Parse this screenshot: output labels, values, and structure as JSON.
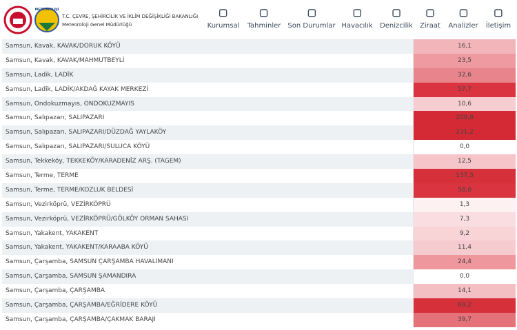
{
  "header": {
    "ministry": "T.C. ÇEVRE, ŞEHİRCİLİK VE İKLİM DEĞİŞİKLİĞİ BAKANLIĞI",
    "agency": "Meteoroloji Genel Müdürlüğü",
    "logo_text": "METEOROLOJİ",
    "nav": [
      "Kurumsal",
      "Tahminler",
      "Son Durumlar",
      "Havacılık",
      "Denizcilik",
      "Ziraat",
      "Analizler",
      "İletişim"
    ]
  },
  "table": {
    "rows": [
      [
        "Samsun, Kavak, KAVAK/DORUK KÖYÜ",
        "16,1",
        "#f2b6ba"
      ],
      [
        "Samsun, Kavak, KAVAK/MAHMUTBEYLİ",
        "23,5",
        "#ee9aa0"
      ],
      [
        "Samsun, Ladik, LADİK",
        "32,6",
        "#e8848b"
      ],
      [
        "Samsun, Ladik, LADİK/AKDAĞ KAYAK MERKEZİ",
        "57,7",
        "#d9343f"
      ],
      [
        "Samsun, Ondokuzmayıs, ONDOKUZMAYIS",
        "10,6",
        "#f6cdd0"
      ],
      [
        "Samsun, Salıpazarı, SALIPAZARI",
        "209,8",
        "#d42a35"
      ],
      [
        "Samsun, Salıpazarı, SALIPAZARI/DÜZDAĞ YAYLAKÖY",
        "231,2",
        "#d42a35"
      ],
      [
        "Samsun, Salıpazarı, SALIPAZARI/SULUCA KÖYÜ",
        "0,0",
        "#ffffff"
      ],
      [
        "Samsun, Tekkeköy, TEKKEKÖY/KARADENİZ ARŞ. (TAGEM)",
        "12,5",
        "#f5c5c9"
      ],
      [
        "Samsun, Terme, TERME",
        "137,3",
        "#d6303b"
      ],
      [
        "Samsun, Terme, TERME/KOZLUK BELDESİ",
        "58,0",
        "#d9343f"
      ],
      [
        "Samsun, Vezirköprü, VEZİRKÖPRÜ",
        "1,3",
        "#fdf1f2"
      ],
      [
        "Samsun, Vezirköprü, VEZİRKÖPRÜ/GÖLKÖY ORMAN SAHASI",
        "7,3",
        "#f9dde0"
      ],
      [
        "Samsun, Yakakent, YAKAKENT",
        "9,2",
        "#f8d4d7"
      ],
      [
        "Samsun, Yakakent, YAKAKENT/KARAABA KÖYÜ",
        "11,4",
        "#f6cbcf"
      ],
      [
        "Samsun, Çarşamba, SAMSUN ÇARŞAMBA HAVALİMANI",
        "24,4",
        "#ee979d"
      ],
      [
        "Samsun, Çarşamba, SAMSUN ŞAMANDIRA",
        "0,0",
        "#ffffff"
      ],
      [
        "Samsun, Çarşamba, ÇARŞAMBA",
        "14,1",
        "#f4bfc3"
      ],
      [
        "Samsun, Çarşamba, ÇARŞAMBA/EĞRİDERE KÖYÜ",
        "69,2",
        "#d6303b"
      ],
      [
        "Samsun, Çarşamba, ÇARŞAMBA/ÇAKMAK BARAJI",
        "39,7",
        "#e57179"
      ]
    ]
  }
}
